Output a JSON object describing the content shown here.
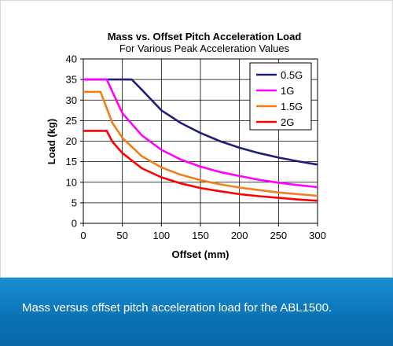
{
  "chart_data": {
    "type": "line",
    "title": "Mass vs. Offset Pitch Acceleration Load",
    "subtitle": "For Various Peak Acceleration Values",
    "xlabel": "Offset (mm)",
    "ylabel": "Load (kg)",
    "xlim": [
      0,
      300
    ],
    "ylim": [
      0,
      40
    ],
    "x_ticks": [
      0,
      50,
      100,
      150,
      200,
      250,
      300
    ],
    "y_ticks": [
      0,
      5,
      10,
      15,
      20,
      25,
      30,
      35,
      40
    ],
    "grid": true,
    "legend_position": "top-right",
    "series": [
      {
        "name": "0.5G",
        "color": "#1f1f7a",
        "points": [
          [
            0,
            35
          ],
          [
            25,
            35
          ],
          [
            62,
            35
          ],
          [
            75,
            32.5
          ],
          [
            100,
            27.5
          ],
          [
            125,
            24.4
          ],
          [
            150,
            22
          ],
          [
            175,
            20
          ],
          [
            200,
            18.4
          ],
          [
            225,
            17.1
          ],
          [
            250,
            16
          ],
          [
            275,
            15.1
          ],
          [
            300,
            14.3
          ]
        ]
      },
      {
        "name": "1G",
        "color": "#ff00ff",
        "points": [
          [
            0,
            35
          ],
          [
            30,
            35
          ],
          [
            50,
            26.8
          ],
          [
            75,
            21.4
          ],
          [
            100,
            17.9
          ],
          [
            125,
            15.5
          ],
          [
            150,
            13.8
          ],
          [
            175,
            12.5
          ],
          [
            200,
            11.5
          ],
          [
            225,
            10.6
          ],
          [
            250,
            9.9
          ],
          [
            275,
            9.3
          ],
          [
            300,
            8.8
          ]
        ]
      },
      {
        "name": "1.5G",
        "color": "#f07f19",
        "points": [
          [
            0,
            32
          ],
          [
            22,
            32
          ],
          [
            37,
            24.5
          ],
          [
            50,
            20.8
          ],
          [
            75,
            16.3
          ],
          [
            100,
            13.6
          ],
          [
            125,
            11.8
          ],
          [
            150,
            10.5
          ],
          [
            175,
            9.5
          ],
          [
            200,
            8.7
          ],
          [
            225,
            8.1
          ],
          [
            250,
            7.5
          ],
          [
            275,
            7.1
          ],
          [
            300,
            6.7
          ]
        ]
      },
      {
        "name": "2G",
        "color": "#ff0000",
        "points": [
          [
            0,
            22.5
          ],
          [
            30,
            22.5
          ],
          [
            37,
            19.9
          ],
          [
            50,
            17.1
          ],
          [
            75,
            13.4
          ],
          [
            100,
            11.2
          ],
          [
            125,
            9.7
          ],
          [
            150,
            8.6
          ],
          [
            175,
            7.8
          ],
          [
            200,
            7.1
          ],
          [
            225,
            6.6
          ],
          [
            250,
            6.2
          ],
          [
            275,
            5.8
          ],
          [
            300,
            5.5
          ]
        ]
      }
    ]
  },
  "caption": "Mass versus offset pitch acceleration load for the ABL1500."
}
